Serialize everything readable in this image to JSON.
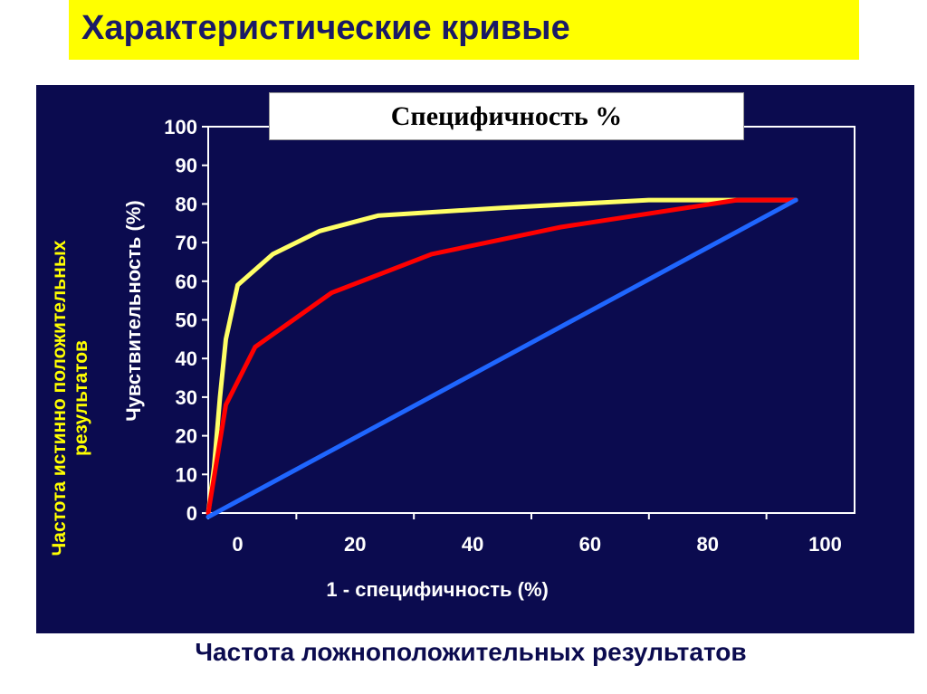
{
  "slide": {
    "title": "Характеристические кривые",
    "spec_box": "Специфичность %",
    "side_label": "Частота истинно положительных результатов",
    "bottom_label": "Частота ложноположительных результатов"
  },
  "chart_data": {
    "type": "line",
    "title": "",
    "xlabel": "1 - специфичность (%)",
    "ylabel": "Чувствительность (%)",
    "xlim": [
      -5,
      105
    ],
    "ylim": [
      0,
      100
    ],
    "x_ticks": [
      0,
      20,
      40,
      60,
      80,
      100
    ],
    "y_ticks": [
      0,
      10,
      20,
      30,
      40,
      50,
      60,
      70,
      80,
      90,
      100
    ],
    "grid": false,
    "legend": "none",
    "series": [
      {
        "color": "#ffff66",
        "x": [
          -5,
          -4,
          -3,
          -2,
          0,
          6,
          14,
          24,
          45,
          70,
          95
        ],
        "y": [
          0,
          12,
          30,
          45,
          59,
          67,
          73,
          77,
          79,
          81,
          81
        ]
      },
      {
        "color": "#ff0000",
        "x": [
          -5,
          -2,
          3,
          16,
          33,
          55,
          85,
          95
        ],
        "y": [
          0,
          28,
          43,
          57,
          67,
          74,
          81,
          81
        ]
      },
      {
        "color": "#1f66ff",
        "x": [
          -5,
          95
        ],
        "y": [
          -1,
          81
        ]
      }
    ]
  }
}
